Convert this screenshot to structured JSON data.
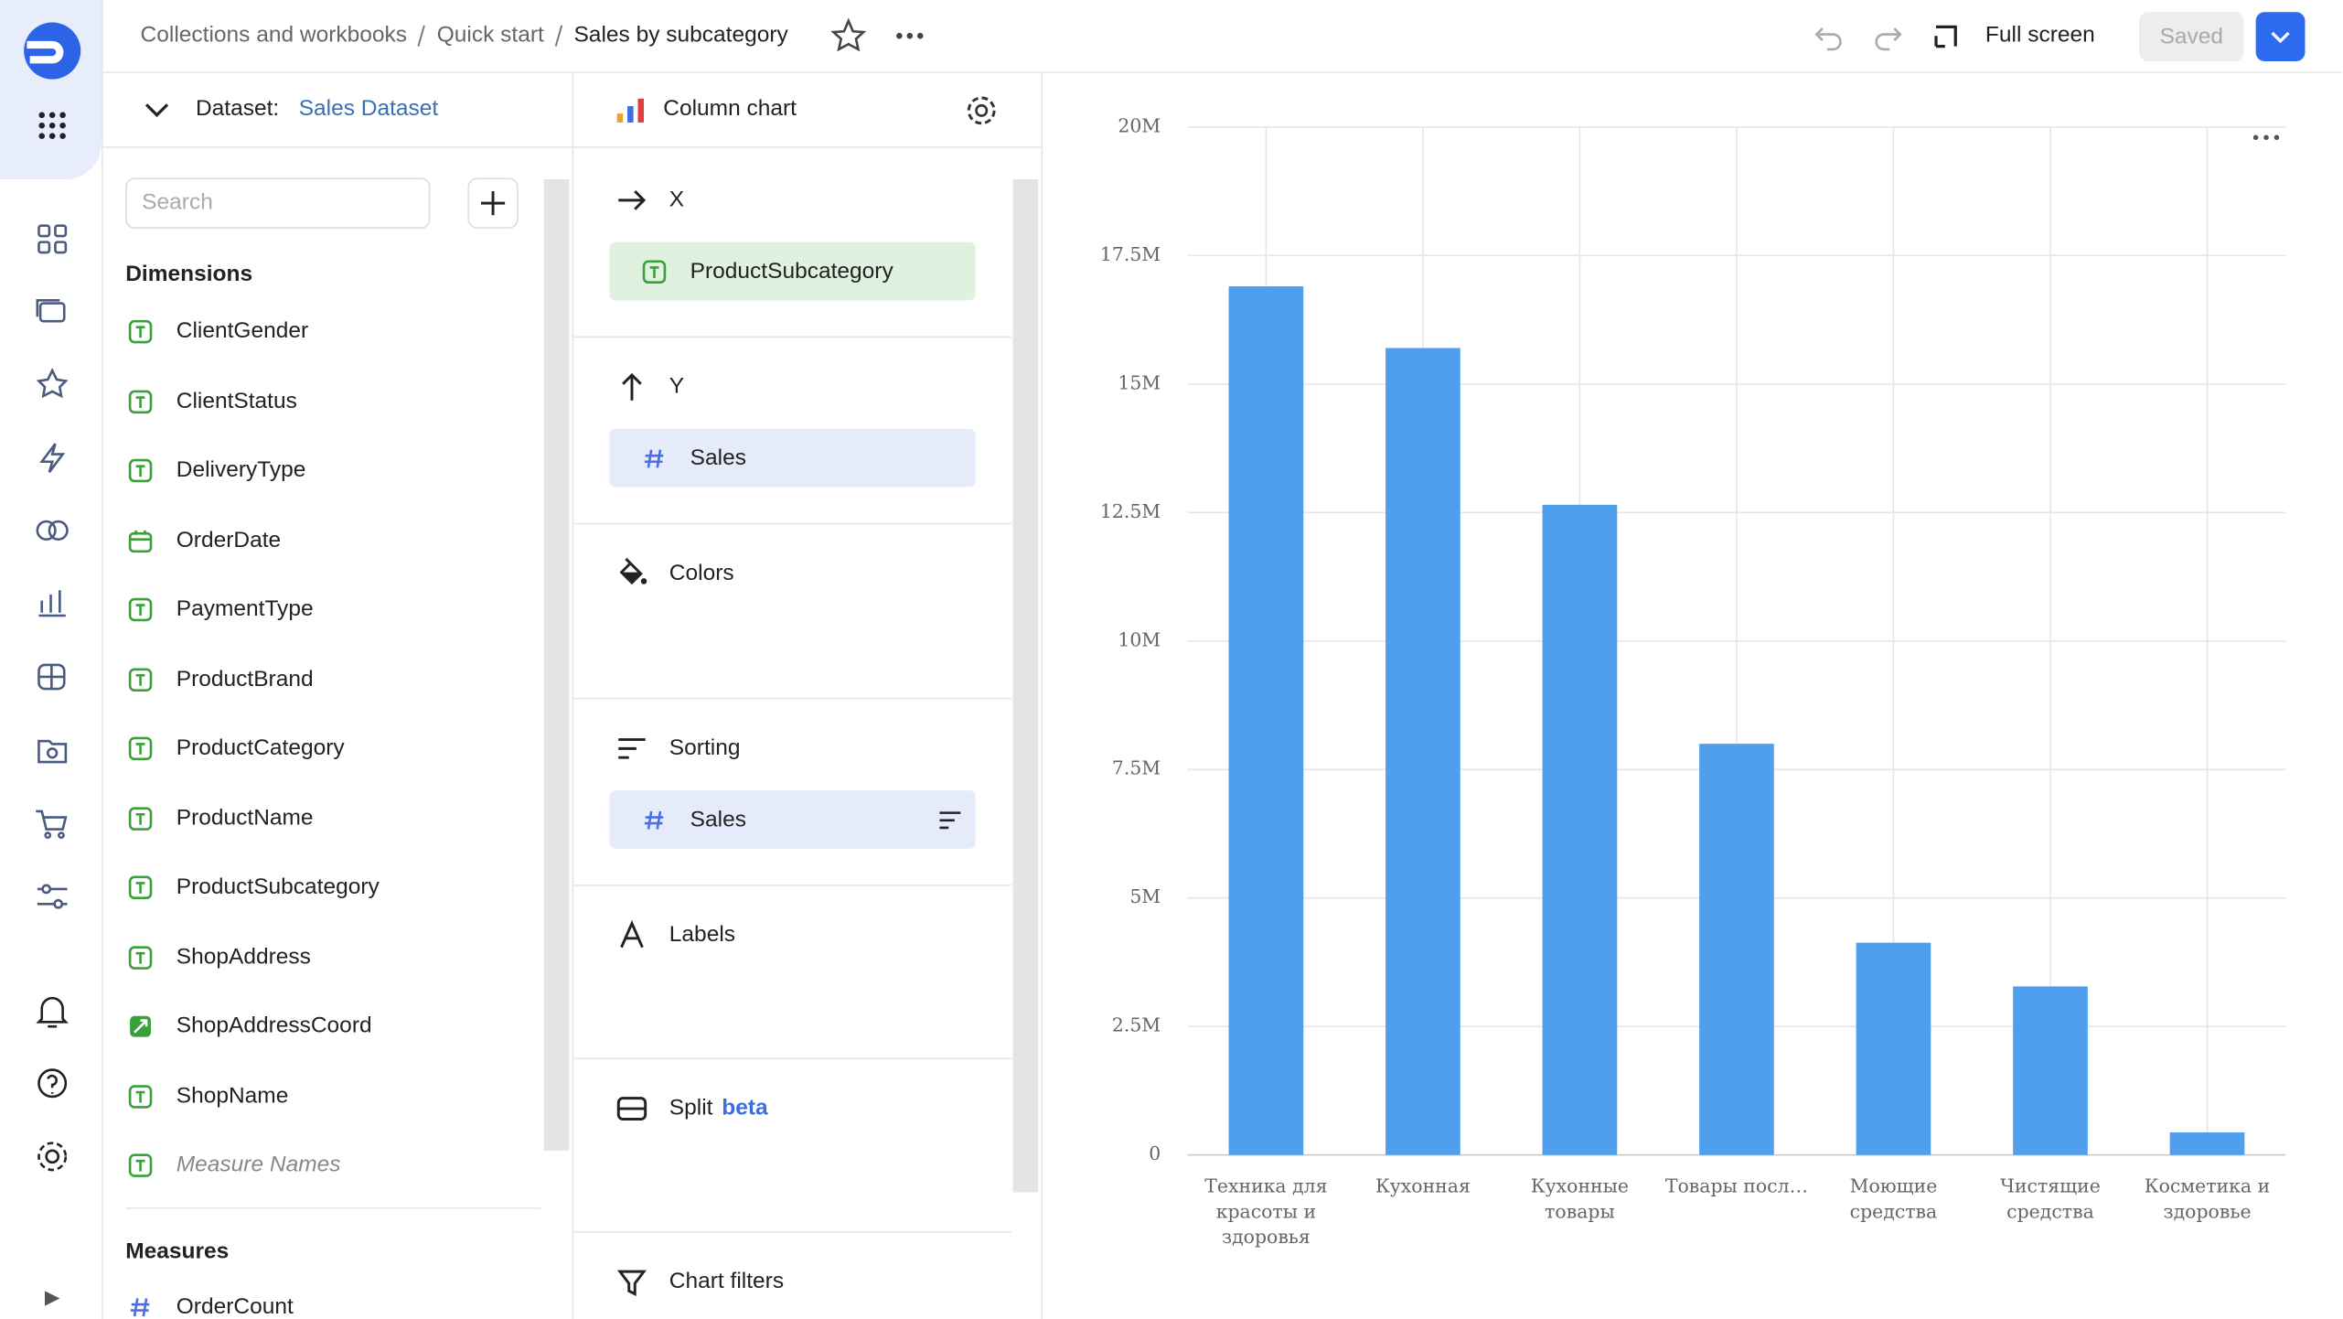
{
  "header": {
    "breadcrumbs": [
      "Collections and workbooks",
      "Quick start",
      "Sales by subcategory"
    ],
    "full_screen": "Full screen",
    "save": "Saved"
  },
  "dataset": {
    "label": "Dataset:",
    "name": "Sales Dataset",
    "search_placeholder": "Search",
    "dimensions_title": "Dimensions",
    "dimensions": [
      {
        "name": "ClientGender",
        "type": "string"
      },
      {
        "name": "ClientStatus",
        "type": "string"
      },
      {
        "name": "DeliveryType",
        "type": "string"
      },
      {
        "name": "OrderDate",
        "type": "date"
      },
      {
        "name": "PaymentType",
        "type": "string"
      },
      {
        "name": "ProductBrand",
        "type": "string"
      },
      {
        "name": "ProductCategory",
        "type": "string"
      },
      {
        "name": "ProductName",
        "type": "string"
      },
      {
        "name": "ProductSubcategory",
        "type": "string"
      },
      {
        "name": "ShopAddress",
        "type": "string"
      },
      {
        "name": "ShopAddressCoord",
        "type": "geo"
      },
      {
        "name": "ShopName",
        "type": "string"
      },
      {
        "name": "Measure Names",
        "type": "pseudo"
      }
    ],
    "measures_title": "Measures",
    "measures": [
      {
        "name": "OrderCount",
        "type": "number"
      }
    ]
  },
  "wizard": {
    "chart_type": "Column chart",
    "sections": [
      {
        "title": "X",
        "items": [
          {
            "name": "ProductSubcategory",
            "type": "string"
          }
        ]
      },
      {
        "title": "Y",
        "items": [
          {
            "name": "Sales",
            "type": "number"
          }
        ]
      },
      {
        "title": "Colors",
        "items": []
      },
      {
        "title": "Sorting",
        "items": [
          {
            "name": "Sales",
            "type": "number"
          }
        ]
      },
      {
        "title": "Labels",
        "items": []
      },
      {
        "title": "Split",
        "badge": "beta",
        "items": []
      },
      {
        "title": "Chart filters",
        "items": []
      }
    ]
  },
  "chart_data": {
    "type": "bar",
    "categories": [
      "Техника для красоты и здоровья",
      "Кухонная",
      "Кухонные товары",
      "Товары посл…",
      "Моющие средства",
      "Чистящие средства",
      "Косметика и здоровье"
    ],
    "values": [
      16900000,
      15700000,
      12650000,
      8000000,
      4130000,
      3280000,
      440000
    ],
    "color": "#4f9fee",
    "ylim": [
      0,
      20000000
    ],
    "yticks": [
      {
        "value": 0,
        "label": "0"
      },
      {
        "value": 2500000,
        "label": "2.5M"
      },
      {
        "value": 5000000,
        "label": "5M"
      },
      {
        "value": 7500000,
        "label": "7.5M"
      },
      {
        "value": 10000000,
        "label": "10M"
      },
      {
        "value": 12500000,
        "label": "12.5M"
      },
      {
        "value": 15000000,
        "label": "15M"
      },
      {
        "value": 17500000,
        "label": "17.5M"
      },
      {
        "value": 20000000,
        "label": "20M"
      }
    ],
    "grid": true
  }
}
